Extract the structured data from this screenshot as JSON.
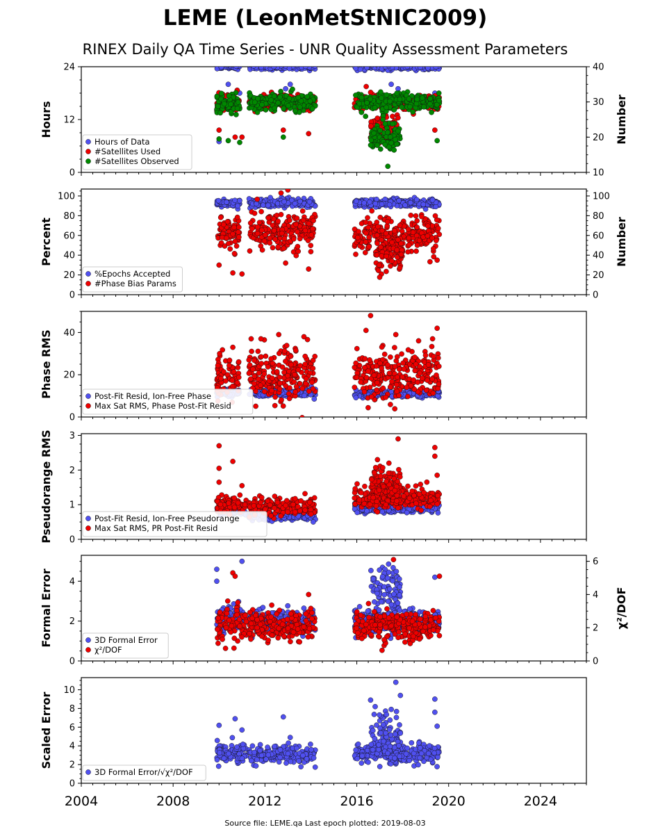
{
  "header": {
    "title": "LEME (LeonMetStNIC2009)",
    "subtitle": "RINEX Daily QA Time Series - UNR Quality Assessment Parameters"
  },
  "footer": "Source file: LEME.qa Last epoch plotted: 2019-08-03",
  "x_ticks": [
    "2004",
    "2008",
    "2012",
    "2016",
    "2020",
    "2024"
  ],
  "colors": {
    "blue": "#5050f0",
    "red": "#ee0000",
    "green": "#008800"
  },
  "chart_data": [
    {
      "type": "scatter",
      "ylabel": "Hours",
      "ylabel_right": "Number",
      "xlim": [
        2004,
        2026
      ],
      "ylim": [
        0,
        24
      ],
      "yticks": [
        0,
        12,
        24
      ],
      "ylim_right": [
        10,
        40
      ],
      "yticks_right": [
        10,
        20,
        30,
        40
      ],
      "legend_position": "lower-left",
      "series": [
        {
          "name": "Hours of Data",
          "color": "blue",
          "axis": "left",
          "clusters": [
            [
              2009.9,
              2010.9,
              24,
              0.3
            ],
            [
              2011.3,
              2014.2,
              24,
              0.3
            ],
            [
              2015.9,
              2019.6,
              24,
              0.3
            ]
          ],
          "points": [
            [
              2010.4,
              20
            ],
            [
              2010.9,
              18
            ],
            [
              2012.9,
              19
            ],
            [
              2013.1,
              20
            ],
            [
              2017.5,
              20
            ],
            [
              2017.8,
              19
            ],
            [
              2019.4,
              18
            ],
            [
              2010.0,
              7
            ]
          ]
        },
        {
          "name": "#Satellites Used",
          "color": "red",
          "axis": "right",
          "clusters": [
            [
              2009.9,
              2010.9,
              30,
              1.2
            ],
            [
              2011.3,
              2014.2,
              30,
              1.0
            ],
            [
              2015.9,
              2019.6,
              30,
              1.0
            ],
            [
              2016.6,
              2017.8,
              22.5,
              2.0
            ]
          ],
          "points": [
            [
              2010.0,
              22
            ],
            [
              2010.7,
              20
            ],
            [
              2011.0,
              20
            ],
            [
              2012.8,
              22
            ],
            [
              2013.9,
              21
            ],
            [
              2019.4,
              22
            ]
          ]
        },
        {
          "name": "#Satellites Observed",
          "color": "green",
          "axis": "right",
          "clusters": [
            [
              2009.9,
              2010.9,
              29.5,
              1.5
            ],
            [
              2011.3,
              2014.2,
              30,
              1.2
            ],
            [
              2015.9,
              2019.6,
              30,
              1.2
            ],
            [
              2016.6,
              2017.9,
              20,
              2.0
            ]
          ],
          "points": [
            [
              2010.0,
              19.5
            ],
            [
              2010.4,
              19
            ],
            [
              2010.9,
              18.5
            ],
            [
              2012.8,
              20
            ],
            [
              2019.5,
              19
            ]
          ]
        }
      ]
    },
    {
      "type": "scatter",
      "ylabel": "Percent",
      "ylabel_right": "Number",
      "xlim": [
        2004,
        2026
      ],
      "ylim": [
        0,
        107
      ],
      "yticks": [
        0,
        20,
        40,
        60,
        80,
        100
      ],
      "ylim_right": [
        0,
        107
      ],
      "yticks_right": [
        0,
        20,
        40,
        60,
        80,
        100
      ],
      "legend_position": "lower-left",
      "series": [
        {
          "name": "%Epochs Accepted",
          "color": "blue",
          "axis": "left",
          "clusters": [
            [
              2009.9,
              2010.9,
              93,
              2
            ],
            [
              2011.3,
              2014.2,
              93,
              2
            ],
            [
              2015.9,
              2019.6,
              93,
              2
            ]
          ],
          "points": []
        },
        {
          "name": "#Phase Bias Params",
          "color": "red",
          "axis": "right",
          "clusters": [
            [
              2009.9,
              2010.9,
              62,
              9
            ],
            [
              2011.3,
              2014.2,
              65,
              9
            ],
            [
              2015.9,
              2019.6,
              60,
              9
            ],
            [
              2016.8,
              2018.0,
              40,
              10
            ]
          ],
          "points": [
            [
              2010.0,
              30
            ],
            [
              2010.6,
              22
            ],
            [
              2011.0,
              21
            ],
            [
              2012.7,
              103
            ],
            [
              2013.0,
              106
            ],
            [
              2012.9,
              32
            ],
            [
              2013.9,
              26
            ],
            [
              2019.5,
              35
            ]
          ]
        }
      ]
    },
    {
      "type": "scatter",
      "ylabel": "Phase RMS",
      "xlim": [
        2004,
        2026
      ],
      "ylim": [
        0,
        50
      ],
      "yticks": [
        0,
        20,
        40
      ],
      "legend_position": "lower-left",
      "series": [
        {
          "name": "Post-Fit Resid, Ion-Free Phase",
          "color": "blue",
          "axis": "left",
          "clusters": [
            [
              2009.9,
              2010.9,
              11.5,
              0.8
            ],
            [
              2011.3,
              2014.2,
              11.5,
              0.8
            ],
            [
              2015.9,
              2019.6,
              11,
              0.8
            ]
          ],
          "points": []
        },
        {
          "name": "Max Sat RMS, Phase Post-Fit Resid",
          "color": "red",
          "axis": "left",
          "clusters": [
            [
              2009.9,
              2010.9,
              19,
              5
            ],
            [
              2011.3,
              2014.2,
              20,
              6
            ],
            [
              2015.9,
              2019.6,
              20,
              6
            ]
          ],
          "points": [
            [
              2010.6,
              33
            ],
            [
              2011.4,
              37
            ],
            [
              2012.6,
              39
            ],
            [
              2013.7,
              38
            ],
            [
              2016.4,
              41
            ],
            [
              2016.6,
              48
            ],
            [
              2017.7,
              39
            ],
            [
              2019.5,
              42
            ],
            [
              2019.3,
              37
            ]
          ]
        }
      ]
    },
    {
      "type": "scatter",
      "ylabel": "Pseudorange RMS",
      "xlim": [
        2004,
        2026
      ],
      "ylim": [
        0,
        3.05
      ],
      "yticks": [
        0,
        1,
        2,
        3
      ],
      "legend_position": "lower-left",
      "series": [
        {
          "name": "Post-Fit Resid, Ion-Free Pseudorange",
          "color": "blue",
          "axis": "left",
          "clusters": [
            [
              2009.9,
              2011.2,
              0.82,
              0.06
            ],
            [
              2011.3,
              2014.2,
              0.68,
              0.06
            ],
            [
              2015.9,
              2019.6,
              0.9,
              0.06
            ]
          ],
          "points": []
        },
        {
          "name": "Max Sat RMS, PR Post-Fit Resid",
          "color": "red",
          "axis": "left",
          "clusters": [
            [
              2009.9,
              2011.2,
              1.0,
              0.12
            ],
            [
              2011.3,
              2014.2,
              0.95,
              0.12
            ],
            [
              2015.9,
              2019.6,
              1.2,
              0.15
            ],
            [
              2016.6,
              2017.9,
              1.6,
              0.25
            ]
          ],
          "points": [
            [
              2010.0,
              2.7
            ],
            [
              2010.0,
              2.05
            ],
            [
              2010.0,
              1.65
            ],
            [
              2010.6,
              2.25
            ],
            [
              2011.0,
              1.55
            ],
            [
              2016.9,
              2.3
            ],
            [
              2017.8,
              2.9
            ],
            [
              2017.4,
              2.2
            ],
            [
              2019.4,
              2.65
            ],
            [
              2019.4,
              2.4
            ],
            [
              2019.5,
              1.85
            ]
          ]
        }
      ]
    },
    {
      "type": "scatter",
      "ylabel": "Formal Error",
      "ylabel_right": "χ²/DOF",
      "xlim": [
        2004,
        2026
      ],
      "ylim": [
        0,
        5.3
      ],
      "yticks": [
        0,
        2,
        4
      ],
      "ylim_right": [
        0,
        6.36
      ],
      "yticks_right": [
        0,
        2,
        4,
        6
      ],
      "legend_position": "lower-left",
      "series": [
        {
          "name": "3D Formal Error",
          "color": "blue",
          "axis": "left",
          "clusters": [
            [
              2009.9,
              2011.2,
              2.1,
              0.3
            ],
            [
              2011.3,
              2014.2,
              2.0,
              0.3
            ],
            [
              2015.9,
              2019.6,
              2.0,
              0.3
            ],
            [
              2016.6,
              2017.9,
              3.5,
              0.6
            ]
          ],
          "points": [
            [
              2009.9,
              4.6
            ],
            [
              2009.9,
              4.0
            ],
            [
              2011.0,
              5.0
            ],
            [
              2019.4,
              4.2
            ]
          ]
        },
        {
          "name": "χ²/DOF",
          "color": "red",
          "axis": "right",
          "clusters": [
            [
              2009.9,
              2011.2,
              2.2,
              0.5
            ],
            [
              2011.3,
              2014.2,
              2.1,
              0.45
            ],
            [
              2015.9,
              2019.6,
              2.1,
              0.45
            ]
          ],
          "points": [
            [
              2010.6,
              5.3
            ],
            [
              2010.7,
              5.1
            ],
            [
              2013.9,
              4.0
            ],
            [
              2017.6,
              6.1
            ],
            [
              2019.6,
              5.1
            ]
          ]
        }
      ]
    },
    {
      "type": "scatter",
      "ylabel": "Scaled Error",
      "xlim": [
        2004,
        2026
      ],
      "ylim": [
        0,
        11.3
      ],
      "yticks": [
        0,
        2,
        4,
        6,
        8,
        10
      ],
      "legend_position": "lower-left",
      "series": [
        {
          "name": "3D Formal Error/√χ²/DOF",
          "color": "blue",
          "axis": "left",
          "clusters": [
            [
              2009.9,
              2011.2,
              3.3,
              0.5
            ],
            [
              2011.3,
              2014.2,
              3.1,
              0.45
            ],
            [
              2015.9,
              2019.6,
              3.2,
              0.5
            ],
            [
              2016.6,
              2017.9,
              5.0,
              1.2
            ]
          ],
          "points": [
            [
              2010.0,
              6.2
            ],
            [
              2010.7,
              6.9
            ],
            [
              2011.0,
              5.7
            ],
            [
              2012.8,
              7.1
            ],
            [
              2013.1,
              4.9
            ],
            [
              2016.6,
              8.9
            ],
            [
              2016.8,
              8.2
            ],
            [
              2017.7,
              10.8
            ],
            [
              2017.9,
              9.4
            ],
            [
              2017.5,
              7.9
            ],
            [
              2019.4,
              9.0
            ],
            [
              2019.4,
              7.6
            ],
            [
              2019.5,
              6.1
            ]
          ]
        }
      ]
    }
  ]
}
